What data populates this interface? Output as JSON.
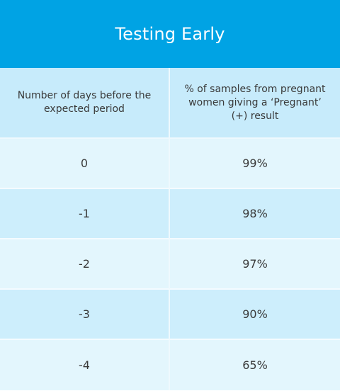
{
  "chart_data": {
    "type": "table",
    "title": "Testing Early",
    "columns": [
      "Number of days before the expected period",
      "% of samples from pregnant women giving a ‘Pregnant’ (+) result"
    ],
    "rows": [
      {
        "days": "0",
        "percent": "99%"
      },
      {
        "days": "-1",
        "percent": "98%"
      },
      {
        "days": "-2",
        "percent": "97%"
      },
      {
        "days": "-3",
        "percent": "90%"
      },
      {
        "days": "-4",
        "percent": "65%"
      }
    ]
  },
  "colors": {
    "header_bar": "#00a3e4",
    "column_header": "#c7ebfb",
    "row_light": "#e3f6fd",
    "row_dark": "#cdeefc"
  }
}
